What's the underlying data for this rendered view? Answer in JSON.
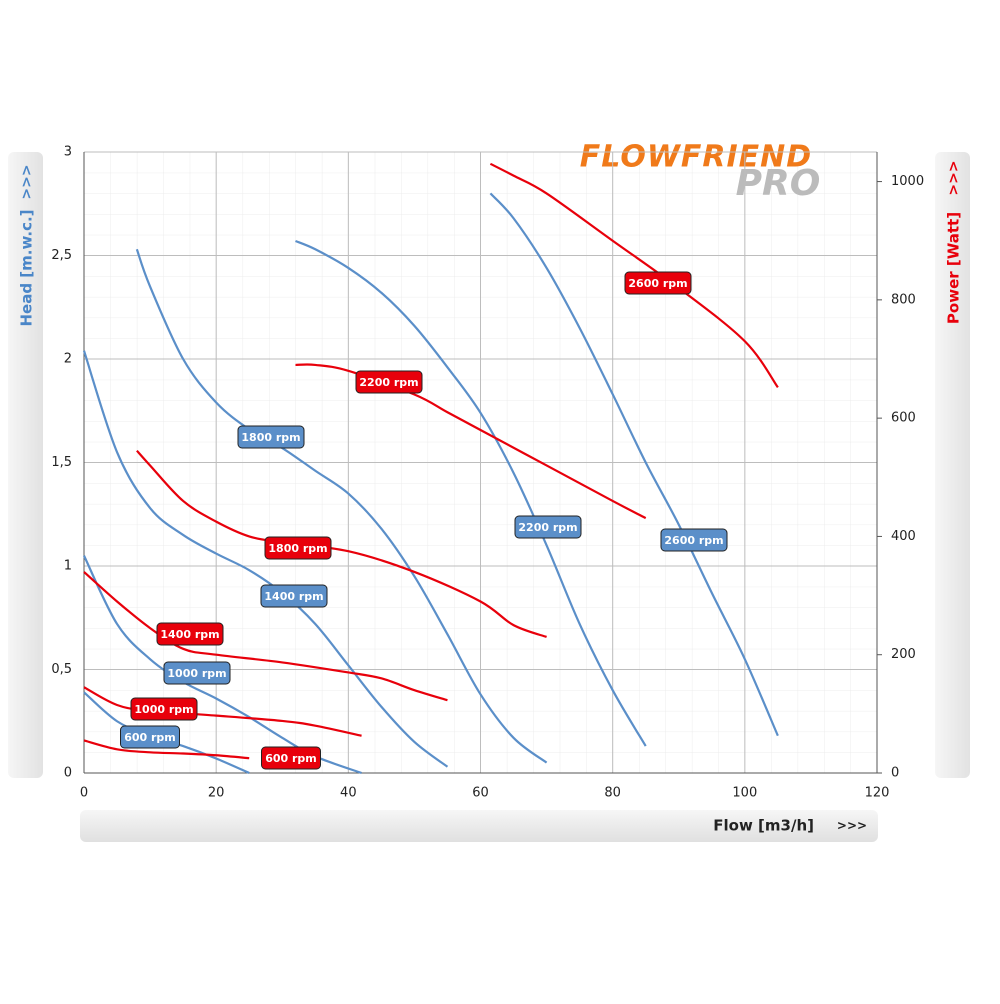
{
  "logo": "FLOWFRIEND",
  "logo_sub": "PRO",
  "chart_data": {
    "type": "line",
    "ylabel": "Head [m.w.c.]",
    "y2label": "Power [Watt]",
    "xlabel": "Flow [m3/h]",
    "arrow_left": ">>>",
    "arrow_right": ">>>",
    "arrow_bottom": ">>>",
    "xlim": [
      0,
      120
    ],
    "xticks": [
      0,
      20,
      40,
      60,
      80,
      100,
      120
    ],
    "ylim": [
      0,
      3
    ],
    "yticks": [
      0,
      {
        "value": 0.5,
        "label": "0,5"
      },
      1,
      {
        "value": 1.5,
        "label": "1,5"
      },
      2,
      {
        "value": 2.5,
        "label": "2,5"
      },
      3
    ],
    "y2lim": [
      0,
      1050
    ],
    "y2ticks": [
      0,
      200,
      400,
      600,
      800,
      1000
    ],
    "grid": true,
    "series": [
      {
        "name": "600 rpm",
        "color": "#5b8fc9",
        "x": [
          0,
          5,
          10,
          15,
          20,
          25
        ],
        "values": [
          0.39,
          0.25,
          0.18,
          0.13,
          0.07,
          0
        ]
      },
      {
        "name": "1000 rpm",
        "color": "#5b8fc9",
        "x": [
          0,
          5,
          10,
          15,
          20,
          25,
          30,
          35,
          42
        ],
        "values": [
          1.05,
          0.72,
          0.55,
          0.44,
          0.36,
          0.27,
          0.17,
          0.08,
          0
        ]
      },
      {
        "name": "1400 rpm",
        "color": "#5b8fc9",
        "x": [
          0,
          5,
          10,
          15,
          20,
          25,
          30,
          35,
          40,
          45,
          50,
          55
        ],
        "values": [
          2.04,
          1.55,
          1.28,
          1.15,
          1.06,
          0.98,
          0.87,
          0.72,
          0.52,
          0.32,
          0.15,
          0.03
        ]
      },
      {
        "name": "1800 rpm",
        "color": "#5b8fc9",
        "x": [
          8,
          10,
          15,
          20,
          25,
          30,
          35,
          40,
          45,
          50,
          55,
          60,
          65,
          70
        ],
        "values": [
          2.53,
          2.35,
          2.0,
          1.79,
          1.66,
          1.57,
          1.46,
          1.35,
          1.18,
          0.95,
          0.67,
          0.38,
          0.17,
          0.05
        ]
      },
      {
        "name": "2200 rpm",
        "color": "#5b8fc9",
        "x": [
          32,
          35,
          40,
          45,
          50,
          55,
          60,
          65,
          70,
          75,
          80,
          85
        ],
        "values": [
          2.57,
          2.53,
          2.44,
          2.32,
          2.16,
          1.96,
          1.74,
          1.45,
          1.1,
          0.72,
          0.4,
          0.13
        ]
      },
      {
        "name": "2600 rpm",
        "color": "#5b8fc9",
        "x": [
          61.5,
          65,
          70,
          75,
          80,
          85,
          90,
          95,
          100,
          105
        ],
        "values": [
          2.8,
          2.68,
          2.44,
          2.15,
          1.83,
          1.5,
          1.2,
          0.87,
          0.55,
          0.18
        ]
      },
      {
        "name": "600 rpm",
        "color": "#e8000b",
        "axis": "y2",
        "x": [
          0,
          5,
          10,
          15,
          20,
          25
        ],
        "values": [
          55,
          40,
          35,
          33,
          30,
          25
        ]
      },
      {
        "name": "1000 rpm",
        "color": "#e8000b",
        "axis": "y2",
        "x": [
          0,
          5,
          10,
          20,
          30,
          35,
          42
        ],
        "values": [
          145,
          115,
          105,
          97,
          88,
          80,
          63
        ]
      },
      {
        "name": "1400 rpm",
        "color": "#e8000b",
        "axis": "y2",
        "x": [
          0,
          5,
          10,
          15,
          20,
          30,
          40,
          45,
          50,
          55
        ],
        "values": [
          340,
          290,
          245,
          210,
          200,
          187,
          170,
          160,
          140,
          123
        ]
      },
      {
        "name": "1800 rpm",
        "color": "#e8000b",
        "axis": "y2",
        "x": [
          8,
          10,
          15,
          20,
          25,
          30,
          40,
          50,
          60,
          65,
          70
        ],
        "values": [
          545,
          520,
          460,
          425,
          400,
          390,
          375,
          340,
          290,
          250,
          230
        ]
      },
      {
        "name": "2200 rpm",
        "color": "#e8000b",
        "axis": "y2",
        "x": [
          32,
          35,
          40,
          50,
          55,
          60,
          70,
          80,
          85
        ],
        "values": [
          690,
          690,
          680,
          640,
          610,
          580,
          520,
          460,
          431
        ]
      },
      {
        "name": "2600 rpm",
        "color": "#e8000b",
        "axis": "y2",
        "x": [
          61.5,
          65,
          70,
          80,
          90,
          100,
          105
        ],
        "values": [
          1030,
          1010,
          980,
          900,
          820,
          730,
          652
        ]
      }
    ]
  }
}
